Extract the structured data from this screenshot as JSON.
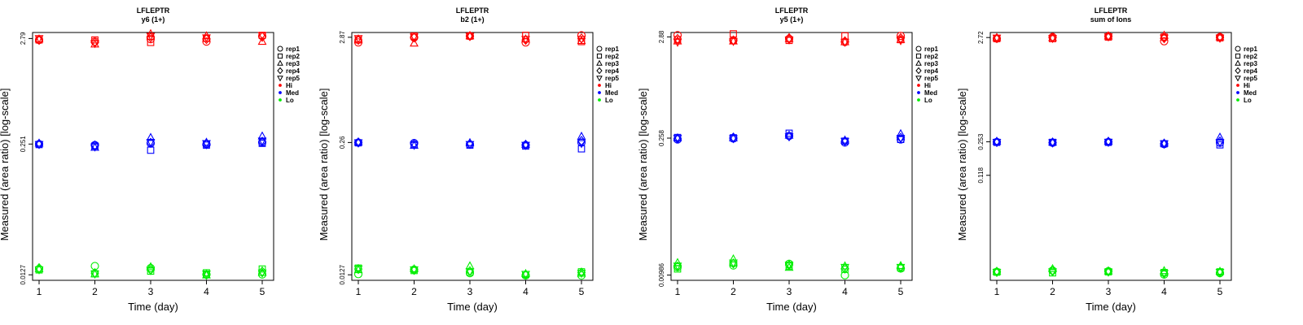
{
  "chart_data": [
    {
      "type": "scatter",
      "title": "LFLEPTR",
      "subtitle": "y6 (1+)",
      "xlabel": "Time (day)",
      "ylabel": "Measured (area ratio) [log-scale]",
      "x_ticks": [
        "1",
        "2",
        "3",
        "4",
        "5"
      ],
      "y_ticks": [
        "0.0127",
        "0.251",
        "2.79"
      ],
      "y_tick_values": [
        0.0127,
        0.251,
        2.79
      ],
      "ylim": [
        0.0112,
        3.2
      ],
      "yscale": "log",
      "legend_position": "right",
      "legend": [
        "rep1",
        "rep2",
        "rep3",
        "rep4",
        "rep5",
        "Hi",
        "Med",
        "Lo"
      ],
      "groups": [
        {
          "name": "Hi",
          "color": "#ff0000",
          "values": {
            "rep1": [
              2.7,
              2.6,
              2.75,
              2.6,
              2.95
            ],
            "rep2": [
              2.7,
              2.7,
              2.55,
              2.8,
              3.0
            ],
            "rep3": [
              2.75,
              2.45,
              3.1,
              2.95,
              2.6
            ],
            "rep4": [
              2.7,
              2.55,
              2.85,
              2.75,
              2.9
            ],
            "rep5": [
              2.8,
              2.5,
              2.95,
              2.85,
              3.0
            ]
          }
        },
        {
          "name": "Med",
          "color": "#0000ff",
          "values": {
            "rep1": [
              0.251,
              0.245,
              0.255,
              0.25,
              0.26
            ],
            "rep2": [
              0.248,
              0.24,
              0.218,
              0.245,
              0.255
            ],
            "rep3": [
              0.255,
              0.232,
              0.29,
              0.26,
              0.3
            ],
            "rep4": [
              0.252,
              0.243,
              0.258,
              0.25,
              0.265
            ],
            "rep5": [
              0.25,
              0.236,
              0.262,
              0.255,
              0.27
            ]
          }
        },
        {
          "name": "Lo",
          "color": "#00ee00",
          "values": {
            "rep1": [
              0.0145,
              0.0155,
              0.0148,
              0.0128,
              0.0128
            ],
            "rep2": [
              0.0142,
              0.013,
              0.0138,
              0.0133,
              0.0145
            ],
            "rep3": [
              0.0145,
              0.0129,
              0.0152,
              0.0126,
              0.0133
            ],
            "rep4": [
              0.0148,
              0.0132,
              0.0142,
              0.0127,
              0.0137
            ],
            "rep5": [
              0.0143,
              0.013,
              0.0141,
              0.013,
              0.0133
            ]
          }
        }
      ]
    },
    {
      "type": "scatter",
      "title": "LFLEPTR",
      "subtitle": "b2 (1+)",
      "xlabel": "Time (day)",
      "ylabel": "Measured (area ratio) [log-scale]",
      "x_ticks": [
        "1",
        "2",
        "3",
        "4",
        "5"
      ],
      "y_ticks": [
        "0.0127",
        "0.26",
        "2.87"
      ],
      "y_tick_values": [
        0.0127,
        0.26,
        2.87
      ],
      "ylim": [
        0.0112,
        3.2
      ],
      "yscale": "log",
      "legend_position": "right",
      "legend": [
        "rep1",
        "rep2",
        "rep3",
        "rep4",
        "rep5",
        "Hi",
        "Med",
        "Lo"
      ],
      "groups": [
        {
          "name": "Hi",
          "color": "#ff0000",
          "values": {
            "rep1": [
              2.55,
              2.85,
              2.95,
              2.55,
              3.0
            ],
            "rep2": [
              2.7,
              2.95,
              2.95,
              3.0,
              2.6
            ],
            "rep3": [
              2.75,
              2.5,
              2.95,
              2.75,
              2.65
            ],
            "rep4": [
              2.7,
              2.85,
              2.95,
              2.7,
              2.8
            ],
            "rep5": [
              2.8,
              2.9,
              2.95,
              2.75,
              2.75
            ]
          }
        },
        {
          "name": "Med",
          "color": "#0000ff",
          "values": {
            "rep1": [
              0.26,
              0.257,
              0.248,
              0.245,
              0.26
            ],
            "rep2": [
              0.258,
              0.248,
              0.245,
              0.24,
              0.225
            ],
            "rep3": [
              0.262,
              0.243,
              0.258,
              0.248,
              0.298
            ],
            "rep4": [
              0.26,
              0.252,
              0.252,
              0.247,
              0.27
            ],
            "rep5": [
              0.26,
              0.245,
              0.25,
              0.245,
              0.255
            ]
          }
        },
        {
          "name": "Lo",
          "color": "#00ee00",
          "values": {
            "rep1": [
              0.0129,
              0.0143,
              0.0132,
              0.0125,
              0.0125
            ],
            "rep2": [
              0.0148,
              0.014,
              0.0135,
              0.0128,
              0.0136
            ],
            "rep3": [
              0.0142,
              0.0145,
              0.0155,
              0.013,
              0.0131
            ],
            "rep4": [
              0.0145,
              0.0142,
              0.0138,
              0.0127,
              0.0134
            ],
            "rep5": [
              0.0146,
              0.0143,
              0.0137,
              0.0129,
              0.0132
            ]
          }
        }
      ]
    },
    {
      "type": "scatter",
      "title": "LFLEPTR",
      "subtitle": "y5 (1+)",
      "xlabel": "Time (day)",
      "ylabel": "Measured (area ratio) [log-scale]",
      "x_ticks": [
        "1",
        "2",
        "3",
        "4",
        "5"
      ],
      "y_ticks": [
        "0.00986",
        "0.258",
        "2.88"
      ],
      "y_tick_values": [
        0.00986,
        0.258,
        2.88
      ],
      "ylim": [
        0.0087,
        3.2
      ],
      "yscale": "log",
      "legend_position": "right",
      "legend": [
        "rep1",
        "rep2",
        "rep3",
        "rep4",
        "rep5",
        "Hi",
        "Med",
        "Lo"
      ],
      "groups": [
        {
          "name": "Hi",
          "color": "#ff0000",
          "values": {
            "rep1": [
              3.0,
              2.65,
              2.75,
              2.55,
              2.95
            ],
            "rep2": [
              2.7,
              3.1,
              2.65,
              2.95,
              2.7
            ],
            "rep3": [
              2.6,
              2.6,
              2.75,
              2.55,
              2.7
            ],
            "rep4": [
              2.75,
              2.65,
              2.8,
              2.6,
              2.8
            ],
            "rep5": [
              2.55,
              2.6,
              2.7,
              2.55,
              2.65
            ]
          }
        },
        {
          "name": "Med",
          "color": "#0000ff",
          "values": {
            "rep1": [
              0.25,
              0.255,
              0.272,
              0.232,
              0.25
            ],
            "rep2": [
              0.262,
              0.26,
              0.29,
              0.24,
              0.25
            ],
            "rep3": [
              0.258,
              0.258,
              0.275,
              0.245,
              0.285
            ],
            "rep4": [
              0.255,
              0.262,
              0.27,
              0.24,
              0.26
            ],
            "rep5": [
              0.258,
              0.256,
              0.268,
              0.24,
              0.258
            ]
          }
        },
        {
          "name": "Lo",
          "color": "#00ee00",
          "values": {
            "rep1": [
              0.0119,
              0.0124,
              0.0129,
              0.0098,
              0.0115
            ],
            "rep2": [
              0.0114,
              0.0131,
              0.0122,
              0.0113,
              0.0117
            ],
            "rep3": [
              0.0132,
              0.0144,
              0.0118,
              0.0122,
              0.0123
            ],
            "rep4": [
              0.0121,
              0.013,
              0.0125,
              0.0115,
              0.0118
            ],
            "rep5": [
              0.0123,
              0.0132,
              0.0126,
              0.0119,
              0.0119
            ]
          }
        }
      ]
    },
    {
      "type": "scatter",
      "title": "LFLEPTR",
      "subtitle": "sum of Ions",
      "xlabel": "Time (day)",
      "ylabel": "Measured (area ratio) [log-scale]",
      "x_ticks": [
        "1",
        "2",
        "3",
        "4",
        "5"
      ],
      "y_ticks": [
        "0.118",
        "0.253",
        "2.72"
      ],
      "y_tick_values": [
        0.118,
        0.253,
        2.72
      ],
      "ylim": [
        0.0108,
        3.05
      ],
      "yscale": "log",
      "legend_position": "right",
      "legend": [
        "rep1",
        "rep2",
        "rep3",
        "rep4",
        "rep5",
        "Hi",
        "Med",
        "Lo"
      ],
      "groups": [
        {
          "name": "Hi",
          "color": "#ff0000",
          "values": {
            "rep1": [
              2.65,
              2.75,
              2.8,
              2.5,
              2.75
            ],
            "rep2": [
              2.65,
              2.65,
              2.75,
              2.75,
              2.7
            ],
            "rep3": [
              2.7,
              2.7,
              2.8,
              2.85,
              2.75
            ],
            "rep4": [
              2.68,
              2.72,
              2.8,
              2.68,
              2.72
            ],
            "rep5": [
              2.7,
              2.68,
              2.78,
              2.7,
              2.7
            ]
          }
        },
        {
          "name": "Med",
          "color": "#0000ff",
          "values": {
            "rep1": [
              0.252,
              0.248,
              0.252,
              0.24,
              0.248
            ],
            "rep2": [
              0.25,
              0.25,
              0.25,
              0.242,
              0.236
            ],
            "rep3": [
              0.255,
              0.25,
              0.255,
              0.244,
              0.28
            ],
            "rep4": [
              0.252,
              0.249,
              0.253,
              0.243,
              0.255
            ],
            "rep5": [
              0.251,
              0.249,
              0.252,
              0.243,
              0.25
            ]
          }
        },
        {
          "name": "Lo",
          "color": "#00ee00",
          "values": {
            "rep1": [
              0.0131,
              0.0135,
              0.0133,
              0.0123,
              0.0127
            ],
            "rep2": [
              0.013,
              0.0128,
              0.0131,
              0.0129,
              0.0131
            ],
            "rep3": [
              0.0132,
              0.014,
              0.0133,
              0.0134,
              0.0132
            ],
            "rep4": [
              0.0131,
              0.0133,
              0.0132,
              0.0126,
              0.0129
            ],
            "rep5": [
              0.013,
              0.0132,
              0.0131,
              0.0127,
              0.013
            ]
          }
        }
      ]
    }
  ]
}
